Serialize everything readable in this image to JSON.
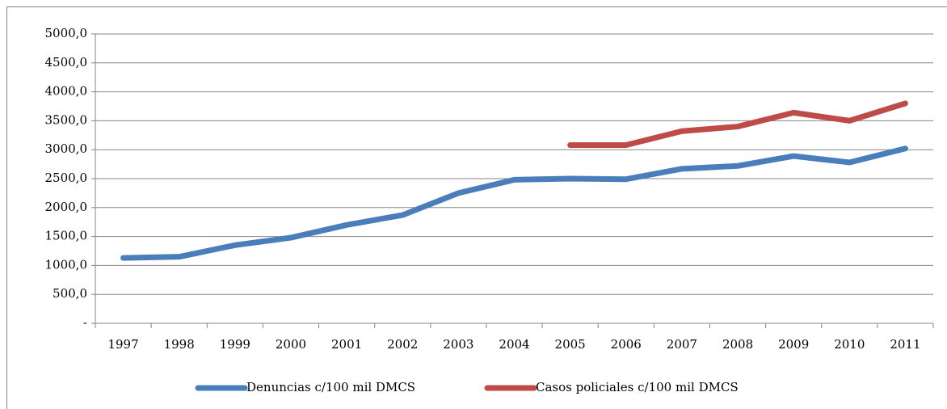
{
  "chart_data": {
    "type": "line",
    "categories": [
      "1997",
      "1998",
      "1999",
      "2000",
      "2001",
      "2002",
      "2003",
      "2004",
      "2005",
      "2006",
      "2007",
      "2008",
      "2009",
      "2010",
      "2011"
    ],
    "series": [
      {
        "name": "Denuncias c/100 mil DMCS",
        "color": "#4a7ebb",
        "values": [
          1130,
          1150,
          1350,
          1480,
          1700,
          1870,
          2250,
          2480,
          2500,
          2490,
          2670,
          2720,
          2890,
          2780,
          3020
        ]
      },
      {
        "name": "Casos policiales c/100 mil DMCS",
        "color": "#be4b48",
        "values": [
          null,
          null,
          null,
          null,
          null,
          null,
          null,
          null,
          3080,
          3080,
          3320,
          3400,
          3640,
          3500,
          3800
        ]
      }
    ],
    "ylim": [
      0,
      5000
    ],
    "yticks": [
      {
        "value": 0,
        "label": "-"
      },
      {
        "value": 500,
        "label": "500,0"
      },
      {
        "value": 1000,
        "label": "1000,0"
      },
      {
        "value": 1500,
        "label": "1500,0"
      },
      {
        "value": 2000,
        "label": "2000,0"
      },
      {
        "value": 2500,
        "label": "2500,0"
      },
      {
        "value": 3000,
        "label": "3000,0"
      },
      {
        "value": 3500,
        "label": "3500,0"
      },
      {
        "value": 4000,
        "label": "4000,0"
      },
      {
        "value": 4500,
        "label": "4500,0"
      },
      {
        "value": 5000,
        "label": "5000,0"
      }
    ],
    "grid": true,
    "legend": "bottom"
  }
}
